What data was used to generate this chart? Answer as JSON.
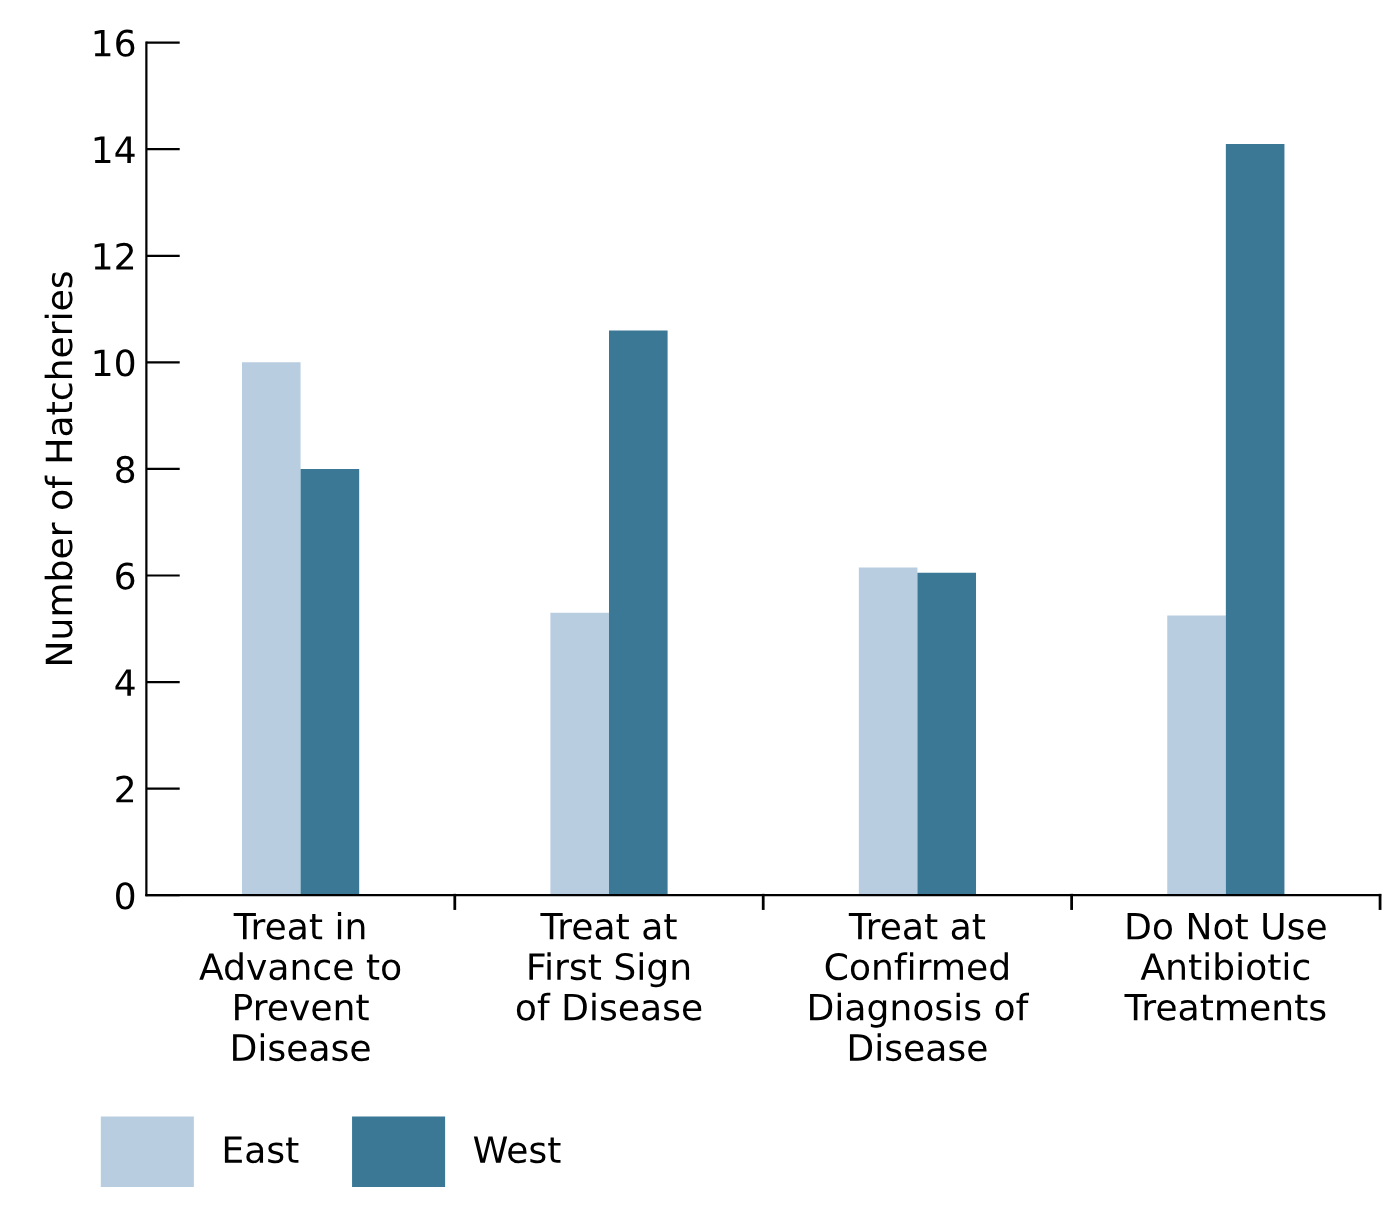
{
  "chart_data": {
    "type": "bar",
    "ylabel": "Number of Hatcheries",
    "categories": [
      "Treat in\nAdvance to\nPrevent\nDisease",
      "Treat at\nFirst Sign\nof Disease",
      "Treat at\nConfirmed\nDiagnosis of\nDisease",
      "Do Not Use\nAntibiotic\nTreatments"
    ],
    "series": [
      {
        "name": "East",
        "color": "#b8cde0",
        "values": [
          10,
          5.3,
          6.15,
          5.25
        ]
      },
      {
        "name": "West",
        "color": "#3a7896",
        "values": [
          8,
          10.6,
          6.05,
          14.1
        ]
      }
    ],
    "ylim": [
      0,
      16
    ],
    "yticks": [
      0,
      2,
      4,
      6,
      8,
      10,
      12,
      14,
      16
    ],
    "grid": false,
    "legend": "bottom left"
  }
}
